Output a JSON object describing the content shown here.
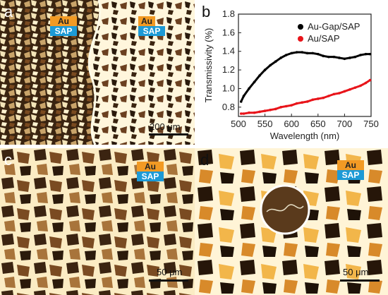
{
  "panels": {
    "a": {
      "label": "a",
      "tag_au": "Au",
      "tag_sap": "SAP",
      "tag_au_2": "Au",
      "tag_sap_2": "SAP",
      "scale": "200 μm"
    },
    "b": {
      "label": "b"
    },
    "c": {
      "label": "c",
      "tag_au": "Au",
      "tag_sap": "SAP",
      "scale": "50 μm"
    },
    "d": {
      "label": "d",
      "tag_au": "Au",
      "tag_sap": "SAP",
      "scale": "50 μm"
    }
  },
  "colors": {
    "au": "#f29a24",
    "sap": "#1d9ad6",
    "series_gap": "#000000",
    "series_ausap": "#e8141a"
  },
  "chart_data": {
    "type": "line",
    "xlabel": "Wavelength (nm)",
    "ylabel": "Transmissivity (%)",
    "xlim": [
      500,
      750
    ],
    "ylim": [
      0.7,
      1.8
    ],
    "xticks": [
      500,
      550,
      600,
      650,
      700,
      750
    ],
    "yticks": [
      0.8,
      1.0,
      1.2,
      1.4,
      1.6,
      1.8
    ],
    "legend_position": "top-right",
    "series": [
      {
        "name": "Au-Gap/SAP",
        "color": "#000000",
        "x": [
          505,
          510,
          520,
          530,
          540,
          550,
          560,
          570,
          580,
          590,
          600,
          610,
          620,
          630,
          640,
          650,
          660,
          670,
          680,
          690,
          700,
          710,
          720,
          730,
          740,
          748
        ],
        "y": [
          0.86,
          0.92,
          1.0,
          1.07,
          1.14,
          1.2,
          1.25,
          1.29,
          1.33,
          1.36,
          1.38,
          1.39,
          1.39,
          1.38,
          1.38,
          1.37,
          1.35,
          1.34,
          1.34,
          1.33,
          1.32,
          1.33,
          1.34,
          1.36,
          1.37,
          1.37
        ]
      },
      {
        "name": "Au/SAP",
        "color": "#e8141a",
        "x": [
          505,
          510,
          520,
          530,
          540,
          550,
          560,
          570,
          580,
          590,
          600,
          610,
          620,
          630,
          640,
          650,
          660,
          670,
          680,
          690,
          700,
          710,
          720,
          730,
          740,
          748
        ],
        "y": [
          0.73,
          0.73,
          0.74,
          0.74,
          0.75,
          0.76,
          0.77,
          0.78,
          0.8,
          0.81,
          0.82,
          0.84,
          0.85,
          0.86,
          0.88,
          0.89,
          0.9,
          0.92,
          0.94,
          0.95,
          0.97,
          0.99,
          1.01,
          1.03,
          1.06,
          1.09
        ]
      }
    ]
  }
}
